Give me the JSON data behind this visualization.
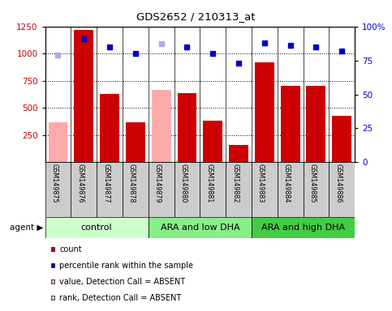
{
  "title": "GDS2652 / 210313_at",
  "samples": [
    "GSM149875",
    "GSM149876",
    "GSM149877",
    "GSM149878",
    "GSM149879",
    "GSM149880",
    "GSM149881",
    "GSM149882",
    "GSM149883",
    "GSM149884",
    "GSM149885",
    "GSM149886"
  ],
  "groups": [
    {
      "label": "control",
      "start": 0,
      "end": 4,
      "color": "#b3ffb3"
    },
    {
      "label": "ARA and low DHA",
      "start": 4,
      "end": 8,
      "color": "#66ff66"
    },
    {
      "label": "ARA and high DHA",
      "start": 8,
      "end": 12,
      "color": "#33cc33"
    }
  ],
  "bar_values": [
    370,
    1220,
    630,
    370,
    670,
    640,
    380,
    160,
    920,
    700,
    700,
    430
  ],
  "bar_colors": [
    "#ffaaaa",
    "#cc0000",
    "#cc0000",
    "#cc0000",
    "#ffaaaa",
    "#cc0000",
    "#cc0000",
    "#cc0000",
    "#cc0000",
    "#cc0000",
    "#cc0000",
    "#cc0000"
  ],
  "scatter_values": [
    79,
    91,
    85,
    80,
    87,
    85,
    80,
    73,
    88,
    86,
    85,
    82
  ],
  "scatter_colors": [
    "#aaaaee",
    "#0000cc",
    "#0000cc",
    "#0000cc",
    "#aaaaee",
    "#0000cc",
    "#0000cc",
    "#0000cc",
    "#0000cc",
    "#0000cc",
    "#0000cc",
    "#0000cc"
  ],
  "ylim_left": [
    0,
    1250
  ],
  "ylim_right": [
    0,
    100
  ],
  "yticks_left": [
    250,
    500,
    750,
    1000,
    1250
  ],
  "yticks_right": [
    0,
    25,
    50,
    75,
    100
  ],
  "left_tick_color": "#cc0000",
  "right_tick_color": "#0000cc",
  "legend_items": [
    {
      "color": "#cc0000",
      "label": "count"
    },
    {
      "color": "#0000cc",
      "label": "percentile rank within the sample"
    },
    {
      "color": "#ffaaaa",
      "label": "value, Detection Call = ABSENT"
    },
    {
      "color": "#ccccff",
      "label": "rank, Detection Call = ABSENT"
    }
  ]
}
